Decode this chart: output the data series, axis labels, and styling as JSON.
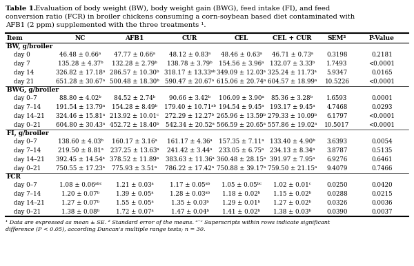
{
  "title_bold": "Table 1.",
  "title_normal": "  Evaluation of body weight (BW), body weight gain (BWG), feed intake (FI), and feed conversion ratio (FCR) in broiler chickens consuming a corn-soybean based diet contaminated with AFB1 (2 ppm) supplemented with the three treatments ¹.",
  "headers": [
    "Item",
    "NC",
    "AFB1",
    "CUR",
    "CEL",
    "CEL + CUR",
    "SEM²",
    "P-Value"
  ],
  "sections": [
    {
      "name": "BW, g/broiler",
      "rows": [
        [
          "day 0",
          "46.48 ± 0.66ᵃ",
          "47.77 ± 0.66ᵃ",
          "48.12 ± 0.83ᵃ",
          "48.46 ± 0.63ᵃ",
          "46.71 ± 0.73ᵃ",
          "0.3198",
          "0.2181"
        ],
        [
          "day 7",
          "135.28 ± 4.37ᵇ",
          "132.28 ± 2.79ᵇ",
          "138.78 ± 3.79ᵇ",
          "154.56 ± 3.96ᵃ",
          "132.07 ± 3.33ᵇ",
          "1.7493",
          "<0.0001"
        ],
        [
          "day 14",
          "326.82 ± 17.18ᵃ",
          "286.57 ± 10.30ᵇ",
          "318.17 ± 13.33ᵃᵇ",
          "349.09 ± 12.03ᵃ",
          "325.24 ± 11.73ᵃ",
          "5.9347",
          "0.0165"
        ],
        [
          "day 21",
          "651.28 ± 30.67ᵃ",
          "500.48 ± 18.30ᵇ",
          "590.47 ± 20.67ᵃ",
          "615.06 ± 20.74ᵃ",
          "604.57 ± 18.99ᵃ",
          "10.5226",
          "<0.0001"
        ]
      ]
    },
    {
      "name": "BWG, g/broiler",
      "rows": [
        [
          "day 0–7",
          "88.80 ± 4.02ᵇ",
          "84.52 ± 2.74ᵇ",
          "90.66 ± 3.42ᵇ",
          "106.09 ± 3.90ᵃ",
          "85.36 ± 3.28ᵇ",
          "1.6593",
          "0.0001"
        ],
        [
          "day 7–14",
          "191.54 ± 13.79ᵃ",
          "154.28 ± 8.49ᵇ",
          "179.40 ± 10.71ᵃᵇ",
          "194.54 ± 9.45ᵃ",
          "193.17 ± 9.45ᵃ",
          "4.7468",
          "0.0293"
        ],
        [
          "day 14–21",
          "324.46 ± 15.81ᵃ",
          "213.92 ± 10.01ᶜ",
          "272.29 ± 12.27ᵇ",
          "265.96 ± 13.59ᵇ",
          "279.33 ± 10.09ᵇ",
          "6.1797",
          "<0.0001"
        ],
        [
          "day 0–21",
          "604.80 ± 30.43ᵃ",
          "452.72 ± 18.40ᵇ",
          "542.34 ± 20.52ᵃ",
          "566.59 ± 20.65ᵃ",
          "557.86 ± 19.02ᵃ",
          "10.5017",
          "<0.0001"
        ]
      ]
    },
    {
      "name": "FI, g/broiler",
      "rows": [
        [
          "day 0–7",
          "138.60 ± 4.03ᵇ",
          "160.17 ± 3.16ᵃ",
          "161.17 ± 4.36ᵃ",
          "157.35 ± 7.11ᵃ",
          "133.40 ± 4.90ᵇ",
          "3.6393",
          "0.0054"
        ],
        [
          "day 7–14",
          "219.50 ± 8.81ᵃ",
          "237.25 ± 13.63ᵃ",
          "241.42 ± 3.44ᵃ",
          "233.05 ± 6.75ᵃ",
          "234.13 ± 8.34ᵃ",
          "3.8787",
          "0.5135"
        ],
        [
          "day 14–21",
          "392.45 ± 14.54ᵃ",
          "378.52 ± 11.89ᵃ",
          "383.63 ± 11.36ᵃ",
          "360.48 ± 28.15ᵃ",
          "391.97 ± 7.95ᵃ",
          "6.9276",
          "0.6461"
        ],
        [
          "day 0–21",
          "750.55 ± 17.23ᵃ",
          "775.93 ± 3.51ᵃ",
          "786.22 ± 17.42ᵃ",
          "750.88 ± 39.17ᵃ",
          "759.50 ± 21.15ᵃ",
          "9.4079",
          "0.7466"
        ]
      ]
    },
    {
      "name": "FCR",
      "rows": [
        [
          "day 0–7",
          "1.08 ± 0.06ᵃᵇᶜ",
          "1.21 ± 0.03ᵃ",
          "1.17 ± 0.05ᵃᵇ",
          "1.05 ± 0.05ᵇᶜ",
          "1.02 ± 0.01ᶜ",
          "0.0250",
          "0.0420"
        ],
        [
          "day 7–14",
          "1.20 ± 0.07ᵇ",
          "1.39 ± 0.05ᵃ",
          "1.28 ± 0.03ᵃᵇ",
          "1.18 ± 0.02ᵇ",
          "1.15 ± 0.02ᵇ",
          "0.0288",
          "0.0215"
        ],
        [
          "day 14–21",
          "1.27 ± 0.07ᵇ",
          "1.55 ± 0.05ᵃ",
          "1.35 ± 0.03ᵇ",
          "1.29 ± 0.01ᵇ",
          "1.27 ± 0.02ᵇ",
          "0.0326",
          "0.0036"
        ],
        [
          "day 0–21",
          "1.38 ± 0.08ᵇ",
          "1.72 ± 0.07ᵃ",
          "1.47 ± 0.04ᵇ",
          "1.41 ± 0.02ᵇ",
          "1.38 ± 0.03ᵇ",
          "0.0390",
          "0.0037"
        ]
      ]
    }
  ],
  "footnote1": "¹ Data are expressed as mean ± SE. ² Standard error of the means. ᵃ⁻ᶜ Superscripts within rows indicate significant",
  "footnote2": "difference (P < 0.05), according Duncan’s multiple range tests; n = 30.",
  "bg_color": "#ffffff",
  "line_color": "#000000",
  "font_size": 6.2,
  "header_font_size": 6.5,
  "title_font_size": 7.2
}
